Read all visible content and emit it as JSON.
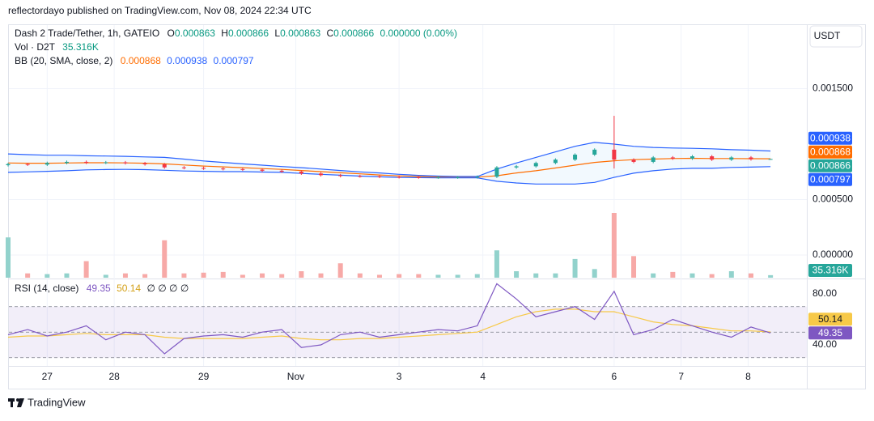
{
  "header": "reflectordayo published on TradingView.com, Nov 08, 2024 22:34 UTC",
  "footer": "TradingView",
  "chart_data": {
    "type": "candlestick",
    "title": "Dash 2 Trade/Tether, 1h, GATEIO",
    "currency": "USDT",
    "ohlc_letters": [
      "O",
      "H",
      "L",
      "C"
    ],
    "change_label": "0.000000 (0.00%)",
    "up_color": "#26a69a",
    "down_color": "#f23645",
    "grid": true,
    "x": [
      0,
      7,
      14,
      21,
      28,
      35,
      42,
      49,
      56,
      63,
      70,
      77,
      84,
      91,
      98,
      105,
      112,
      119,
      126,
      133,
      140,
      147,
      154,
      161,
      168,
      175,
      182,
      189,
      196,
      203,
      210,
      217,
      224,
      231,
      238,
      245,
      252,
      259,
      266,
      273
    ],
    "xlim": [
      0,
      286
    ],
    "xticks": [
      {
        "value": 14,
        "label": "27"
      },
      {
        "value": 38,
        "label": "28"
      },
      {
        "value": 70,
        "label": "29"
      },
      {
        "value": 103,
        "label": "Nov"
      },
      {
        "value": 140,
        "label": "3"
      },
      {
        "value": 170,
        "label": "4"
      },
      {
        "value": 217,
        "label": "6"
      },
      {
        "value": 241,
        "label": "7"
      },
      {
        "value": 265,
        "label": "8"
      }
    ],
    "ylim": [
      -0.000204,
      0.00208
    ],
    "yticks": [
      {
        "value": 0,
        "label": "0.000000"
      },
      {
        "value": 0.0005,
        "label": "0.000500"
      },
      {
        "value": 0.0015,
        "label": "0.001500"
      }
    ],
    "open": [
      0.00081,
      0.00082,
      0.000815,
      0.00083,
      0.00084,
      0.000832,
      0.000836,
      0.000828,
      0.000818,
      0.00079,
      0.000785,
      0.00078,
      0.000775,
      0.00077,
      0.00076,
      0.000752,
      0.000735,
      0.00072,
      0.000712,
      0.00071,
      0.000705,
      0.000702,
      0.0007,
      0.0007,
      0.000701,
      0.000706,
      0.00079,
      0.0008,
      0.00083,
      0.00086,
      0.000905,
      0.00095,
      0.00086,
      0.00084,
      0.00088,
      0.00087,
      0.00089,
      0.00086,
      0.00088,
      0.000863
    ],
    "high": [
      0.000832,
      0.000832,
      0.000842,
      0.000852,
      0.000852,
      0.000848,
      0.000848,
      0.00084,
      0.00083,
      0.000802,
      0.000797,
      0.000792,
      0.000787,
      0.000782,
      0.000772,
      0.000764,
      0.000747,
      0.000732,
      0.000724,
      0.000722,
      0.000717,
      0.000714,
      0.000712,
      0.000713,
      0.000718,
      0.000802,
      0.000812,
      0.000842,
      0.000872,
      0.000917,
      0.000962,
      0.001255,
      0.000872,
      0.000892,
      0.000892,
      0.000902,
      0.000902,
      0.000892,
      0.000892,
      0.000866
    ],
    "low": [
      0.000798,
      0.000803,
      0.000803,
      0.000818,
      0.00082,
      0.00082,
      0.000816,
      0.000806,
      0.000778,
      0.000773,
      0.000768,
      0.000763,
      0.000758,
      0.000748,
      0.00074,
      0.000723,
      0.000708,
      0.0007,
      0.000698,
      0.000693,
      0.00069,
      0.000688,
      0.000688,
      0.000688,
      0.000689,
      0.000694,
      0.000778,
      0.000788,
      0.000818,
      0.000848,
      0.000893,
      0.00078,
      0.000828,
      0.000828,
      0.000858,
      0.000858,
      0.000848,
      0.000848,
      0.000851,
      0.000863
    ],
    "close": [
      0.00082,
      0.000815,
      0.00083,
      0.00084,
      0.000832,
      0.000836,
      0.000828,
      0.000818,
      0.00079,
      0.000785,
      0.00078,
      0.000775,
      0.00077,
      0.00076,
      0.000752,
      0.000735,
      0.00072,
      0.000712,
      0.00071,
      0.000705,
      0.000702,
      0.0007,
      0.0007,
      0.000701,
      0.000706,
      0.00079,
      0.0008,
      0.00083,
      0.00086,
      0.000905,
      0.00095,
      0.00086,
      0.00084,
      0.00088,
      0.00087,
      0.00089,
      0.00086,
      0.00088,
      0.000863,
      0.000866
    ],
    "bands": {
      "name": "BB (20, SMA, close, 2)",
      "fill": "rgba(33,150,243,0.06)",
      "series": [
        {
          "color": "#ff6d00",
          "values": [
            0.00083,
            0.000828,
            0.000828,
            0.00083,
            0.000832,
            0.000832,
            0.000831,
            0.000828,
            0.000822,
            0.000812,
            0.000802,
            0.000795,
            0.000788,
            0.00078,
            0.000772,
            0.000762,
            0.000752,
            0.000742,
            0.000732,
            0.000722,
            0.000714,
            0.000708,
            0.000704,
            0.000702,
            0.000702,
            0.000715,
            0.00074,
            0.00076,
            0.000785,
            0.00081,
            0.000835,
            0.00085,
            0.00086,
            0.000865,
            0.00087,
            0.000872,
            0.00087,
            0.00087,
            0.000869,
            0.000868
          ]
        },
        {
          "color": "#2962ff",
          "values": [
            0.000912,
            0.000905,
            0.0009,
            0.0009,
            0.000895,
            0.000893,
            0.00089,
            0.000885,
            0.00088,
            0.000865,
            0.000848,
            0.000835,
            0.000822,
            0.00081,
            0.000798,
            0.000788,
            0.000775,
            0.000762,
            0.00075,
            0.00074,
            0.000728,
            0.000718,
            0.000712,
            0.000708,
            0.000708,
            0.000775,
            0.00083,
            0.00088,
            0.00093,
            0.00098,
            0.001015,
            0.001,
            0.00098,
            0.00097,
            0.000965,
            0.000962,
            0.000958,
            0.00095,
            0.000945,
            0.000938
          ]
        },
        {
          "color": "#2962ff",
          "values": [
            0.000745,
            0.00075,
            0.000755,
            0.00076,
            0.000768,
            0.000771,
            0.000772,
            0.00077,
            0.000764,
            0.000758,
            0.000755,
            0.000752,
            0.000752,
            0.000748,
            0.000745,
            0.000736,
            0.000728,
            0.00072,
            0.000712,
            0.000705,
            0.0007,
            0.000698,
            0.000696,
            0.000696,
            0.000696,
            0.000665,
            0.00065,
            0.00064,
            0.00064,
            0.00064,
            0.000655,
            0.0007,
            0.000738,
            0.00076,
            0.000775,
            0.000782,
            0.000782,
            0.00079,
            0.000793,
            0.000797
          ]
        }
      ]
    },
    "volume": {
      "name": "Vol · D2T",
      "up_color": "#92d2cc",
      "down_color": "#f7a9a7",
      "values": [
        560,
        60,
        50,
        60,
        230,
        40,
        60,
        50,
        520,
        60,
        70,
        80,
        40,
        60,
        50,
        90,
        60,
        200,
        60,
        40,
        50,
        50,
        40,
        40,
        50,
        380,
        90,
        60,
        60,
        260,
        120,
        900,
        300,
        60,
        80,
        60,
        50,
        90,
        60,
        35.316
      ],
      "value_labels": [
        null,
        null,
        null,
        null,
        null,
        null,
        null,
        null,
        null,
        null,
        null,
        null,
        null,
        null,
        null,
        null,
        null,
        null,
        null,
        null,
        null,
        null,
        null,
        null,
        null,
        null,
        null,
        null,
        null,
        null,
        null,
        null,
        null,
        null,
        null,
        null,
        null,
        null,
        null,
        "35.316K"
      ]
    },
    "rsi": {
      "name": "RSI (14, close)",
      "color": "#7e57c2",
      "ma_color": "#f7c948",
      "na_label": "∅ ∅ ∅ ∅",
      "ylim": [
        23.5,
        91.4
      ],
      "yticks": [
        {
          "value": 80,
          "label": "80.00"
        },
        {
          "value": 40,
          "label": "40.00"
        }
      ],
      "levels": [
        70,
        50,
        30
      ],
      "values": [
        48,
        52,
        47,
        50,
        55,
        44,
        50,
        48,
        33,
        45,
        47,
        48,
        46,
        50,
        52,
        38,
        40,
        48,
        50,
        46,
        48,
        50,
        52,
        51,
        55,
        88,
        76,
        62,
        66,
        70,
        60,
        82,
        48,
        52,
        60,
        55,
        50,
        46,
        54,
        49.35
      ],
      "ma_values": [
        46,
        47,
        47,
        48,
        49,
        48,
        48,
        48,
        46,
        45,
        45,
        45,
        45,
        46,
        47,
        45,
        44,
        44,
        45,
        45,
        46,
        47,
        48,
        49,
        50,
        56,
        62,
        66,
        68,
        68,
        66,
        66,
        62,
        58,
        56,
        55,
        53,
        51,
        51,
        50.14
      ]
    }
  }
}
